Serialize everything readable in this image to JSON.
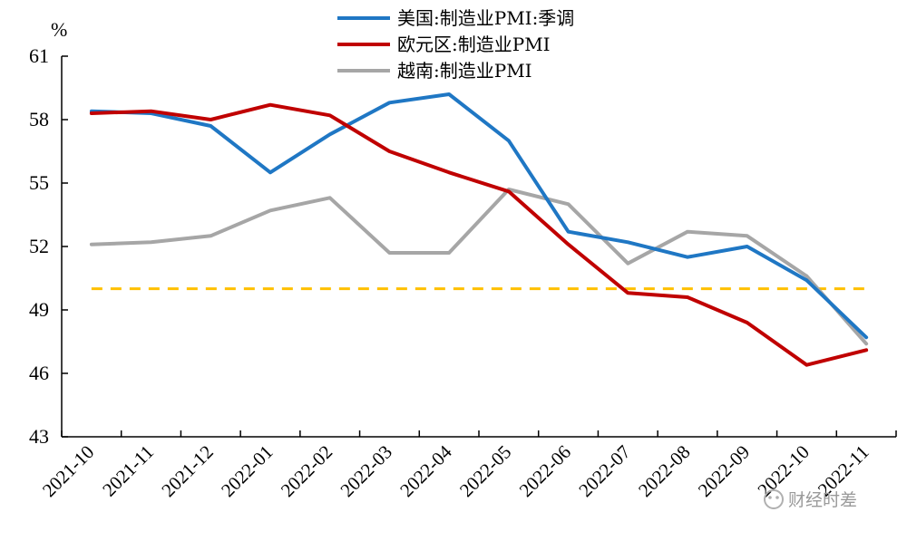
{
  "chart_data": {
    "type": "line",
    "unit": "%",
    "categories": [
      "2021-10",
      "2021-11",
      "2021-12",
      "2022-01",
      "2022-02",
      "2022-03",
      "2022-04",
      "2022-05",
      "2022-06",
      "2022-07",
      "2022-08",
      "2022-09",
      "2022-10",
      "2022-11"
    ],
    "ylim": [
      43,
      61
    ],
    "yticks": [
      43,
      46,
      49,
      52,
      55,
      58,
      61
    ],
    "series": [
      {
        "name": "美国:制造业PMI:季调",
        "color": "#1f77c4",
        "values": [
          58.4,
          58.3,
          57.7,
          55.5,
          57.3,
          58.8,
          59.2,
          57.0,
          52.7,
          52.2,
          51.5,
          52.0,
          50.4,
          47.7
        ]
      },
      {
        "name": "欧元区:制造业PMI",
        "color": "#c00000",
        "values": [
          58.3,
          58.4,
          58.0,
          58.7,
          58.2,
          56.5,
          55.5,
          54.6,
          52.1,
          49.8,
          49.6,
          48.4,
          46.4,
          47.1
        ]
      },
      {
        "name": "越南:制造业PMI",
        "color": "#a6a6a6",
        "values": [
          52.1,
          52.2,
          52.5,
          53.7,
          54.3,
          51.7,
          51.7,
          54.7,
          54.0,
          51.2,
          52.7,
          52.5,
          50.6,
          47.4
        ]
      }
    ],
    "reference_line": {
      "value": 50,
      "color": "#ffc000",
      "style": "dashed"
    },
    "legend_position": "top-center"
  },
  "watermark": {
    "text": "财经时差"
  }
}
